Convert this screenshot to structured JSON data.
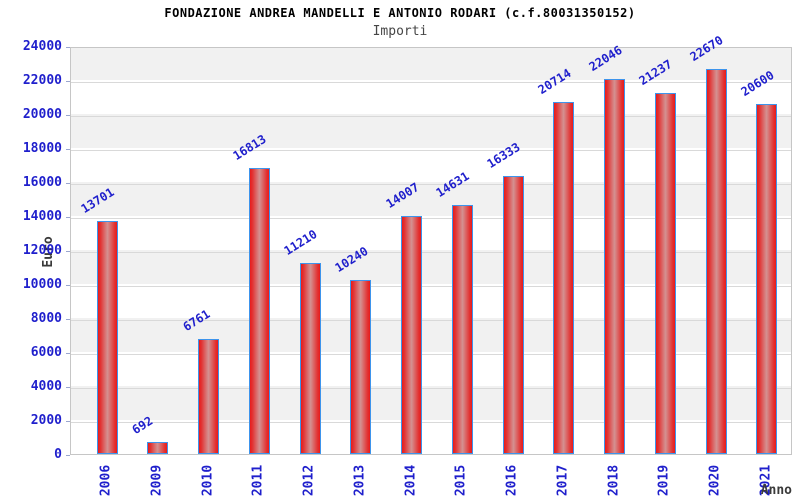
{
  "header": {
    "title": "FONDAZIONE ANDREA MANDELLI E ANTONIO RODARI (c.f.80031350152)",
    "subtitle": "Importi"
  },
  "chart_data": {
    "type": "bar",
    "title": "FONDAZIONE ANDREA MANDELLI E ANTONIO RODARI (c.f.80031350152)",
    "subtitle": "Importi",
    "xlabel": "Anno",
    "ylabel": "Euro",
    "categories": [
      "2006",
      "2009",
      "2010",
      "2011",
      "2012",
      "2013",
      "2014",
      "2015",
      "2016",
      "2017",
      "2018",
      "2019",
      "2020",
      "2021"
    ],
    "values": [
      13701,
      692,
      6761,
      16813,
      11210,
      10240,
      14007,
      14631,
      16333,
      20714,
      22046,
      21237,
      22670,
      20600
    ],
    "ylim": [
      0,
      24000
    ],
    "yticks": [
      0,
      2000,
      4000,
      6000,
      8000,
      10000,
      12000,
      14000,
      16000,
      18000,
      20000,
      22000,
      24000
    ],
    "grid": "horizontal gridlines every 2000, alternating white/gray bands",
    "legend": "none",
    "colors": {
      "bar_edge_red": "#e81b1b",
      "bar_center_red": "#d49292",
      "bar_border_blue": "#3d94ec",
      "axis_label_blue": "#1f1fcc",
      "band_gray": "#f1f1f1",
      "gridline_gray": "#d9d9d9",
      "plot_border_gray": "#c6c6c6",
      "axis_title_dark": "#3a3a3a"
    }
  }
}
